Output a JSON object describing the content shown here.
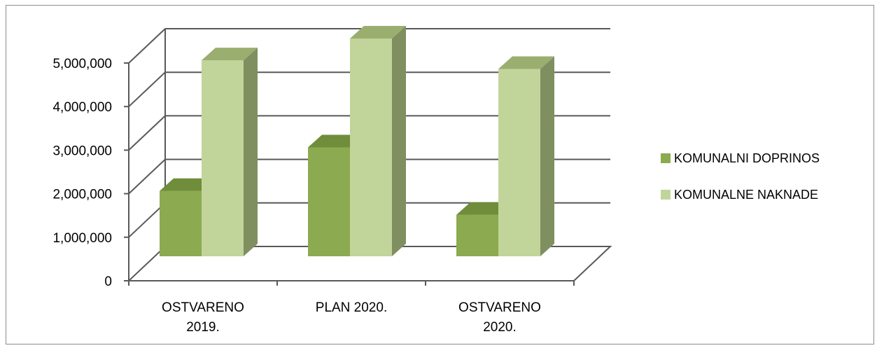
{
  "chart_data": {
    "type": "bar",
    "categories": [
      [
        "OSTVARENO",
        "2019."
      ],
      [
        "PLAN 2020."
      ],
      [
        "OSTVARENO",
        "2020."
      ]
    ],
    "series": [
      {
        "name": "KOMUNALNI DOPRINOS",
        "values": [
          1500000,
          2500000,
          950000
        ],
        "color": "#8caa4f"
      },
      {
        "name": "KOMUNALNE NAKNADE",
        "values": [
          4500000,
          5000000,
          4300000
        ],
        "color": "#c1d59a"
      }
    ],
    "ylim": [
      0,
      5000000
    ],
    "yticks": [
      "0",
      "1,000,000",
      "2,000,000",
      "3,000,000",
      "4,000,000",
      "5,000,000"
    ],
    "grid": true,
    "legend_position": "right",
    "style": "3d-clustered-column"
  }
}
